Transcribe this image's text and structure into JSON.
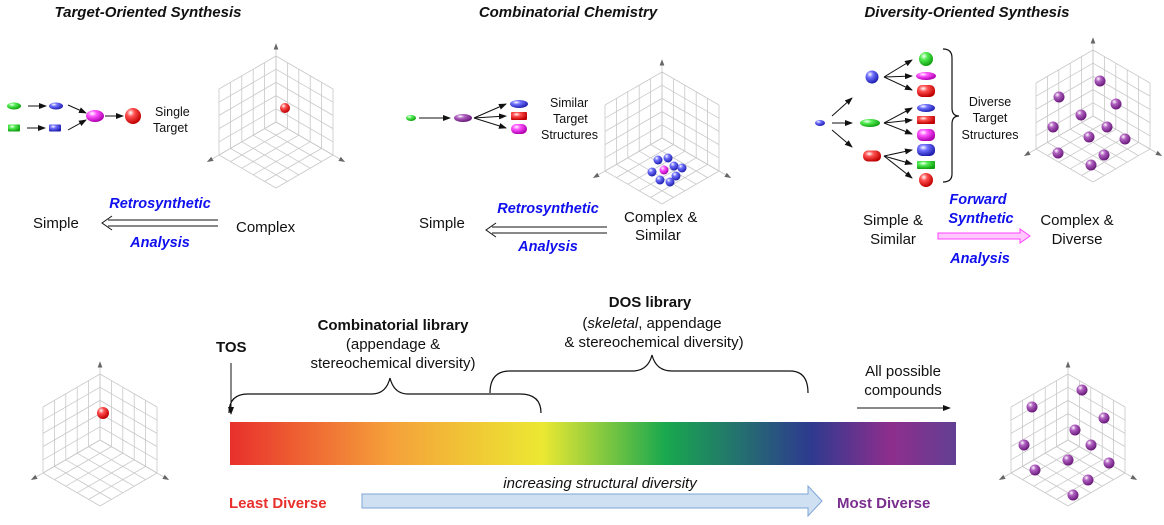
{
  "tos": {
    "title": "Target-Oriented Synthesis",
    "target_label": [
      "Single",
      "Target"
    ],
    "left": "Simple",
    "right": "Complex",
    "arrow_top": "Retrosynthetic",
    "arrow_bottom": "Analysis"
  },
  "combi": {
    "title": "Combinatorial Chemistry",
    "target_label": [
      "Similar",
      "Target",
      "Structures"
    ],
    "left": "Simple",
    "right": [
      "Complex &",
      "Similar"
    ],
    "arrow_top": "Retrosynthetic",
    "arrow_bottom": "Analysis"
  },
  "dos": {
    "title": "Diversity-Oriented Synthesis",
    "target_label": [
      "Diverse",
      "Target",
      "Structures"
    ],
    "left": [
      "Simple &",
      "Similar"
    ],
    "right": [
      "Complex &",
      "Diverse"
    ],
    "arrow_top": [
      "Forward",
      "Synthetic"
    ],
    "arrow_bottom": "Analysis"
  },
  "spectrum": {
    "tos": "TOS",
    "combi_title": "Combinatorial library",
    "combi_sub": [
      "(appendage &",
      "stereochemical diversity)"
    ],
    "dos_title": "DOS library",
    "dos_sub_italic": "skeletal",
    "dos_sub": [
      "(",
      ", appendage",
      "& stereochemical diversity)"
    ],
    "all": [
      "All possible",
      "compounds"
    ],
    "axis_label": "increasing structural diversity",
    "least": "Least Diverse",
    "most": "Most Diverse",
    "colors": [
      "#e8302c",
      "#f5a03a",
      "#ece832",
      "#19a84e",
      "#2e3a8f",
      "#8e2e8c",
      "#623f93"
    ]
  },
  "colors": {
    "accent_text": "#1010ee",
    "least": "#e8302c",
    "most": "#7a2e8e",
    "forward_arrow": "#ff66ff"
  }
}
